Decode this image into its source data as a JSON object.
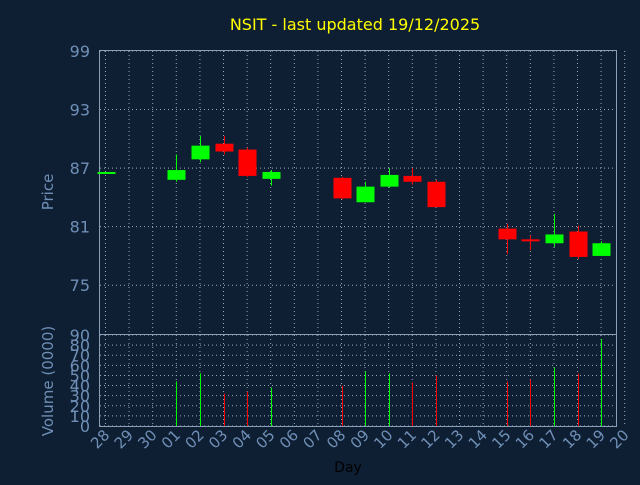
{
  "colors": {
    "background": "#0f1f33",
    "axis_text": "#6f8fb6",
    "title": "#ffff00",
    "grid": "#9aa7b5",
    "frame": "#8aa0b8",
    "up": "#00ff00",
    "down": "#ff0000",
    "day_label": "#000000"
  },
  "chart_data": {
    "type": "candlestick",
    "title": "NSIT - last updated 19/12/2025",
    "price_panel": {
      "ylabel": "Price",
      "ylim": [
        70,
        99
      ],
      "yticks": [
        "99",
        "93",
        "87",
        "81",
        "75"
      ],
      "ytick_values": [
        99,
        93,
        87,
        81,
        75
      ],
      "grid": true
    },
    "volume_panel": {
      "ylabel": "Volume (0000)",
      "ylim": [
        0,
        90
      ],
      "yticks": [
        "90",
        "80",
        "70",
        "60",
        "50",
        "40",
        "30",
        "20",
        "10",
        "0"
      ],
      "ytick_values": [
        90,
        80,
        70,
        60,
        50,
        40,
        30,
        20,
        10,
        0
      ],
      "grid": true
    },
    "xlabel": "Day",
    "categories": [
      "28",
      "29",
      "30",
      "01",
      "02",
      "03",
      "04",
      "05",
      "06",
      "07",
      "08",
      "09",
      "10",
      "11",
      "12",
      "13",
      "14",
      "15",
      "16",
      "17",
      "18",
      "19",
      "20"
    ],
    "candles": [
      {
        "day": "28",
        "open": 86.6,
        "high": 86.6,
        "low": 86.6,
        "close": 86.6,
        "volume": 0
      },
      {
        "day": "01",
        "open": 85.8,
        "high": 88.4,
        "low": 85.6,
        "close": 86.8,
        "volume": 44
      },
      {
        "day": "02",
        "open": 87.9,
        "high": 90.3,
        "low": 87.6,
        "close": 89.3,
        "volume": 52
      },
      {
        "day": "03",
        "open": 89.5,
        "high": 90.3,
        "low": 88.4,
        "close": 88.7,
        "volume": 32
      },
      {
        "day": "04",
        "open": 88.9,
        "high": 89.1,
        "low": 86.1,
        "close": 86.2,
        "volume": 34
      },
      {
        "day": "05",
        "open": 85.9,
        "high": 86.8,
        "low": 85.2,
        "close": 86.6,
        "volume": 38
      },
      {
        "day": "08",
        "open": 86.0,
        "high": 86.1,
        "low": 83.8,
        "close": 83.9,
        "volume": 40
      },
      {
        "day": "09",
        "open": 83.5,
        "high": 85.6,
        "low": 83.5,
        "close": 85.1,
        "volume": 54
      },
      {
        "day": "10",
        "open": 85.1,
        "high": 87.0,
        "low": 85.0,
        "close": 86.3,
        "volume": 52
      },
      {
        "day": "11",
        "open": 86.2,
        "high": 87.0,
        "low": 85.3,
        "close": 85.6,
        "volume": 43
      },
      {
        "day": "12",
        "open": 85.6,
        "high": 85.8,
        "low": 83.0,
        "close": 83.0,
        "volume": 50
      },
      {
        "day": "15",
        "open": 80.8,
        "high": 81.3,
        "low": 78.2,
        "close": 79.7,
        "volume": 44
      },
      {
        "day": "16",
        "open": 79.7,
        "high": 80.1,
        "low": 78.6,
        "close": 79.6,
        "volume": 46
      },
      {
        "day": "17",
        "open": 79.3,
        "high": 82.3,
        "low": 78.9,
        "close": 80.2,
        "volume": 58
      },
      {
        "day": "18",
        "open": 80.5,
        "high": 81.1,
        "low": 77.7,
        "close": 77.9,
        "volume": 52
      },
      {
        "day": "19",
        "open": 78.0,
        "high": 79.5,
        "low": 78.0,
        "close": 79.3,
        "volume": 86
      }
    ]
  }
}
